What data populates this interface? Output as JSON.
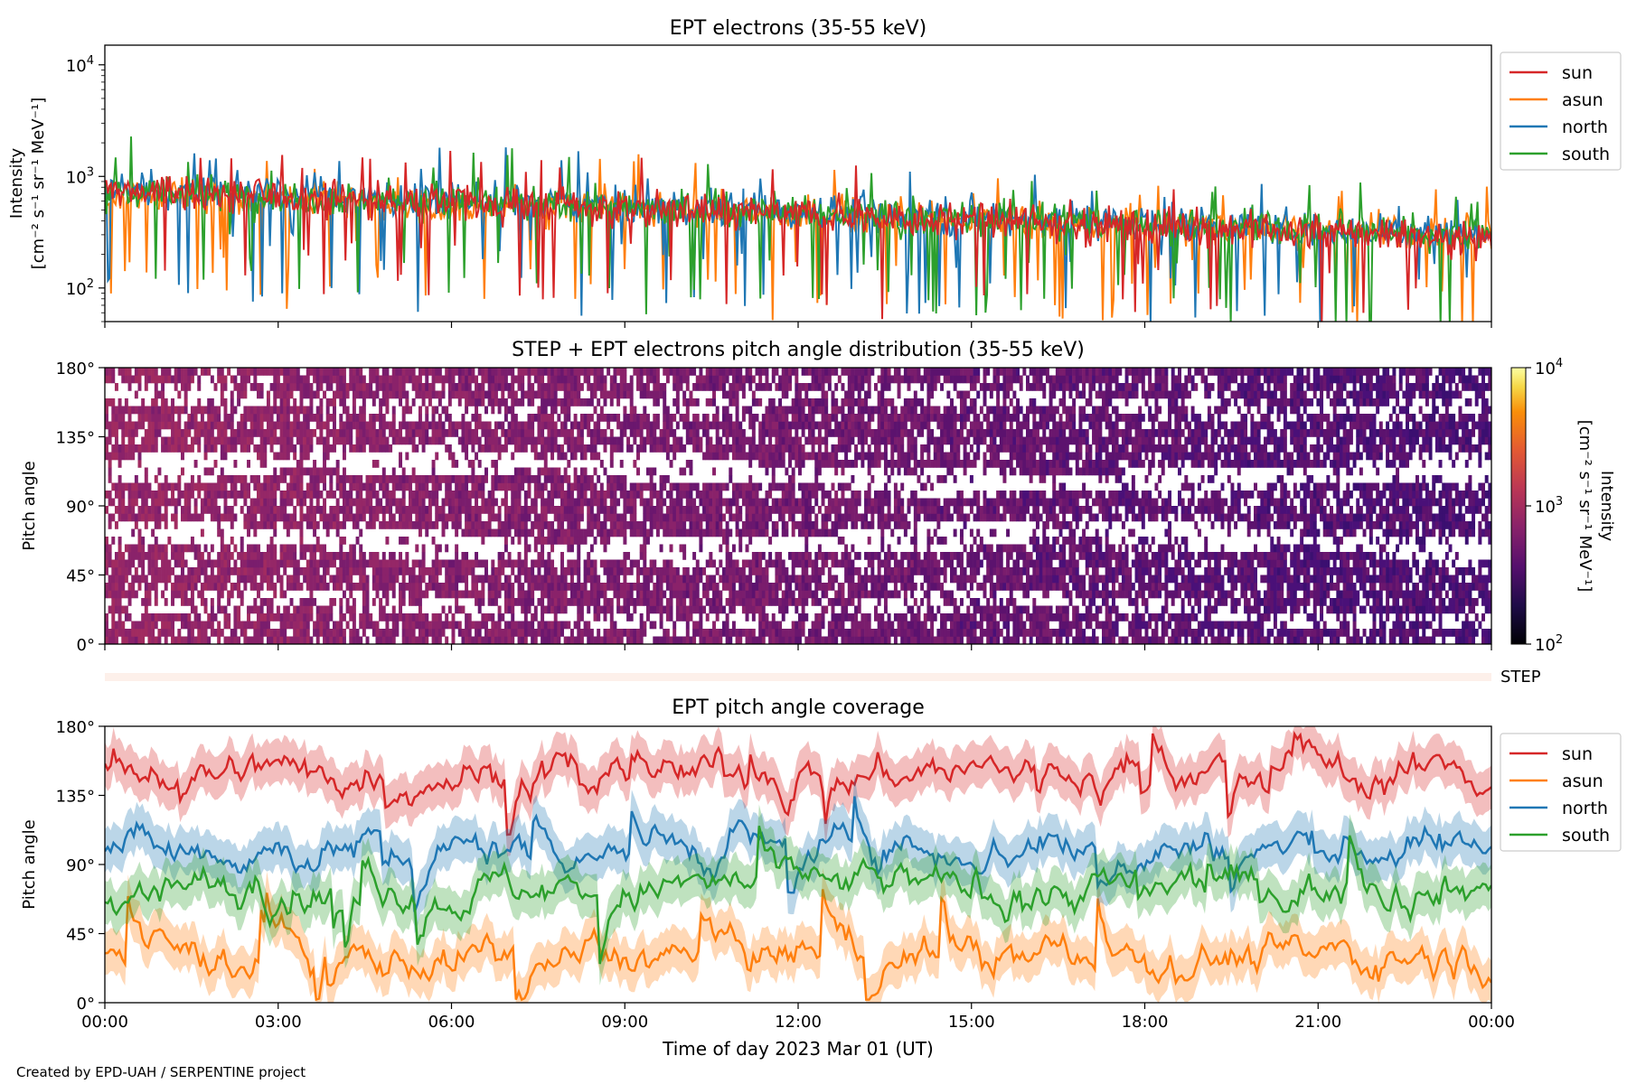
{
  "credit": "Created by EPD-UAH / SERPENTINE project",
  "xlabel": "Time of day 2023 Mar 01 (UT)",
  "xticks": [
    "00:00",
    "03:00",
    "06:00",
    "09:00",
    "12:00",
    "15:00",
    "18:00",
    "21:00",
    "00:00"
  ],
  "colors": {
    "sun": "#d62728",
    "asun": "#ff7f0e",
    "north": "#1f77b4",
    "south": "#2ca02c"
  },
  "chart_data": [
    {
      "type": "line",
      "title": "EPT electrons (35-55 keV)",
      "ylabel_line1": "Intensity",
      "ylabel_line2": "[cm⁻² s⁻¹ sr⁻¹ MeV⁻¹]",
      "yscale": "log",
      "ylim": [
        50,
        15000
      ],
      "yticks": [
        100,
        1000,
        10000
      ],
      "ytick_labels": [
        {
          "base": "10",
          "exp": "2"
        },
        {
          "base": "10",
          "exp": "3"
        },
        {
          "base": "10",
          "exp": "4"
        }
      ],
      "xlim_hours": [
        0,
        24
      ],
      "legend_position": "outside-right",
      "series": [
        {
          "name": "sun",
          "start_level": 750,
          "end_level": 280
        },
        {
          "name": "asun",
          "start_level": 700,
          "end_level": 300
        },
        {
          "name": "north",
          "start_level": 800,
          "end_level": 300
        },
        {
          "name": "south",
          "start_level": 750,
          "end_level": 300
        }
      ]
    },
    {
      "type": "heatmap",
      "title": "STEP + EPT electrons pitch angle distribution (35-55 keV)",
      "ylabel": "Pitch angle",
      "ylim": [
        0,
        180
      ],
      "ytick_labels": [
        "0°",
        "45°",
        "90°",
        "135°",
        "180°"
      ],
      "colorbar": {
        "scale": "log",
        "range": [
          100,
          10000
        ],
        "tick_labels": [
          {
            "base": "10",
            "exp": "2"
          },
          {
            "base": "10",
            "exp": "3"
          },
          {
            "base": "10",
            "exp": "4"
          }
        ],
        "label_line1": "Intensity",
        "label_line2": "[cm⁻² s⁻¹ sr⁻¹ MeV⁻¹]",
        "colormap": "inferno"
      },
      "step_label": "STEP"
    },
    {
      "type": "line",
      "title": "EPT pitch angle coverage",
      "ylabel": "Pitch angle",
      "ylim": [
        0,
        180
      ],
      "ytick_labels": [
        "0°",
        "45°",
        "90°",
        "135°",
        "180°"
      ],
      "xlim_hours": [
        0,
        24
      ],
      "legend_position": "outside-right",
      "series": [
        {
          "name": "sun",
          "mean_deg": 150
        },
        {
          "name": "asun",
          "mean_deg": 30
        },
        {
          "name": "north",
          "mean_deg": 100
        },
        {
          "name": "south",
          "mean_deg": 75
        }
      ]
    }
  ]
}
